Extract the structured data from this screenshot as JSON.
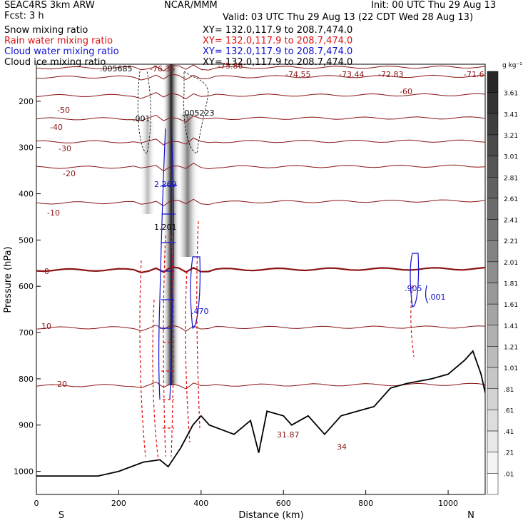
{
  "header": {
    "model": "SEAC4RS   3km ARW",
    "forecast": "Fcst:    3 h",
    "center": "NCAR/MMM",
    "init": "Init: 00 UTC Thu 29 Aug 13",
    "valid": "Valid: 03 UTC Thu 29 Aug 13 (22 CDT Wed 28 Aug 13)"
  },
  "fields": [
    {
      "name": "Snow mixing ratio",
      "xy": "XY= 132.0,117.9 to 208.7,474.0",
      "color": "#000000"
    },
    {
      "name": "Rain water mixing ratio",
      "xy": "XY= 132.0,117.9 to 208.7,474.0",
      "color": "#e01010"
    },
    {
      "name": "Cloud water mixing ratio",
      "xy": "XY= 132.0,117.9 to 208.7,474.0",
      "color": "#1010d0"
    },
    {
      "name": "Cloud ice mixing ratio",
      "xy": "XY= 132.0,117.9 to 208.7,474.0",
      "color": "#000000"
    }
  ],
  "colorbar": {
    "unit": "g kg⁻¹",
    "labels": [
      "3.61",
      "3.41",
      "3.21",
      "3.01",
      "2.81",
      "2.61",
      "2.41",
      "2.21",
      "2.01",
      "1.81",
      "1.61",
      "1.41",
      "1.21",
      "1.01",
      ".81",
      ".61",
      ".41",
      ".21",
      ".01"
    ]
  },
  "chart_data": {
    "type": "cross-section",
    "xlabel": "Distance (km)",
    "ylabel": "Pressure (hPa)",
    "xlim": [
      0,
      1090
    ],
    "ylim": [
      1050,
      120
    ],
    "xticks": [
      "0",
      "200",
      "400",
      "600",
      "800",
      "1000"
    ],
    "yticks": [
      "200",
      "300",
      "400",
      "500",
      "600",
      "700",
      "800",
      "900",
      "1000"
    ],
    "x_end_labels": {
      "left": "S",
      "right": "N"
    },
    "temperature_contour_labels": [
      "-76.35",
      "-75.86",
      "-74.55",
      "-73.44",
      "-72.83",
      "-71.6",
      "-60",
      "-50",
      "-40",
      "-30",
      "-20",
      "-10",
      "0",
      "10",
      "20"
    ],
    "temperature_isotherms": [
      {
        "T": -70,
        "p": [
          [
            0,
            128
          ],
          [
            1090,
            126
          ]
        ]
      },
      {
        "T": -60,
        "p": [
          [
            0,
            148
          ],
          [
            1090,
            146
          ]
        ]
      },
      {
        "T": -50,
        "p": [
          [
            0,
            188
          ],
          [
            1090,
            186
          ]
        ]
      },
      {
        "T": -40,
        "p": [
          [
            0,
            238
          ],
          [
            1090,
            236
          ]
        ]
      },
      {
        "T": -30,
        "p": [
          [
            0,
            288
          ],
          [
            1090,
            286
          ]
        ]
      },
      {
        "T": -20,
        "p": [
          [
            0,
            343
          ],
          [
            1090,
            340
          ]
        ]
      },
      {
        "T": -10,
        "p": [
          [
            0,
            420
          ],
          [
            1090,
            415
          ]
        ]
      },
      {
        "T": 0,
        "p": [
          [
            0,
            565
          ],
          [
            1090,
            562
          ]
        ]
      },
      {
        "T": 10,
        "p": [
          [
            0,
            690
          ],
          [
            1090,
            688
          ]
        ]
      },
      {
        "T": 20,
        "p": [
          [
            0,
            815
          ],
          [
            1090,
            812
          ]
        ]
      }
    ],
    "terrain": [
      [
        0,
        1010
      ],
      [
        150,
        1010
      ],
      [
        200,
        1000
      ],
      [
        260,
        980
      ],
      [
        300,
        975
      ],
      [
        320,
        990
      ],
      [
        350,
        950
      ],
      [
        380,
        900
      ],
      [
        400,
        880
      ],
      [
        420,
        900
      ],
      [
        450,
        910
      ],
      [
        480,
        920
      ],
      [
        520,
        890
      ],
      [
        540,
        960
      ],
      [
        560,
        870
      ],
      [
        600,
        880
      ],
      [
        620,
        900
      ],
      [
        660,
        880
      ],
      [
        700,
        920
      ],
      [
        740,
        880
      ],
      [
        780,
        870
      ],
      [
        820,
        860
      ],
      [
        860,
        820
      ],
      [
        900,
        810
      ],
      [
        960,
        800
      ],
      [
        1000,
        790
      ],
      [
        1040,
        760
      ],
      [
        1060,
        740
      ],
      [
        1080,
        790
      ],
      [
        1090,
        830
      ]
    ],
    "contour_labels": [
      ".001",
      ".005223",
      ".005685",
      "2.269",
      "1.201",
      ".905",
      ".001",
      ".470",
      "31.87",
      "34"
    ]
  }
}
